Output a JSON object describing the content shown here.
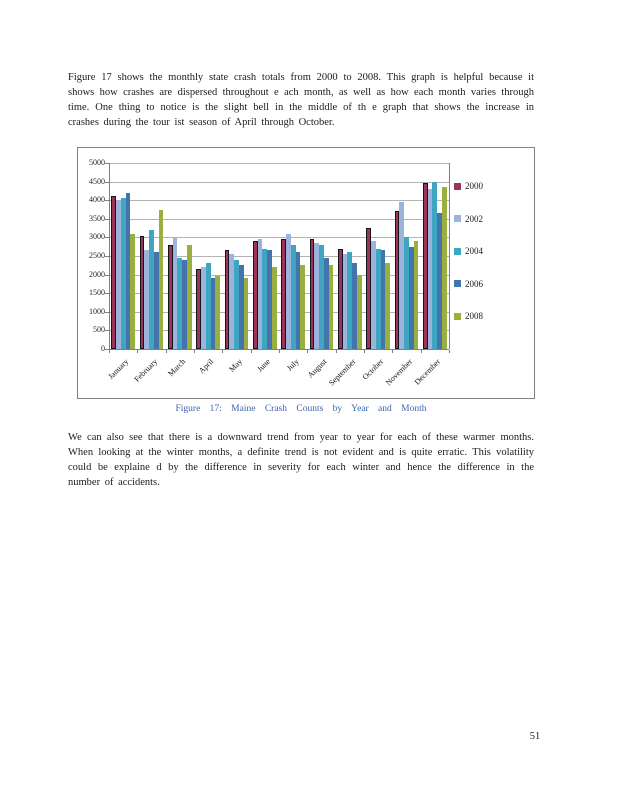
{
  "page": {
    "number": "51"
  },
  "paragraphs": {
    "top": "Figure 17 shows the monthly state crash totals from 2000 to 2008. This graph is helpful because it shows how crashes are dispersed throughout e ach month, as well as how each month varies through time. One thing to notice is the slight bell in the middle of th e graph that shows the increase in crashes during the tour ist season of April through October.",
    "bottom": "We can also see that there is a downward trend from year to year for each of these warmer months. When looking at the winter months, a definite trend is not evident and is quite erratic. This volatility could be explaine d by the difference in severity for each winter and hence the difference in the number of accidents."
  },
  "caption": "Figure 17: Maine Crash Counts by Year and Month",
  "chart_data": {
    "type": "bar",
    "title": "",
    "xlabel": "",
    "ylabel": "",
    "ylim": [
      0,
      5000
    ],
    "y_tick_step": 500,
    "y_ticks": [
      0,
      500,
      1000,
      1500,
      2000,
      2500,
      3000,
      3500,
      4000,
      4500,
      5000
    ],
    "grid": true,
    "legend_position": "right",
    "categories": [
      "January",
      "February",
      "March",
      "April",
      "May",
      "June",
      "July",
      "August",
      "September",
      "October",
      "November",
      "December"
    ],
    "series": [
      {
        "name": "2000",
        "color": "#9c3359",
        "outline": "#14141e",
        "values": [
          4100,
          3050,
          2800,
          2150,
          2650,
          2900,
          2950,
          2950,
          2700,
          3250,
          3700,
          4450
        ]
      },
      {
        "name": "2002",
        "color": "#9cb3dc",
        "outline": "#8aa3cc",
        "values": [
          4000,
          2650,
          3000,
          2200,
          2550,
          2950,
          3100,
          2850,
          2550,
          2900,
          3950,
          4300
        ]
      },
      {
        "name": "2004",
        "color": "#3fa6c2",
        "outline": "#3595b0",
        "values": [
          4050,
          3200,
          2450,
          2300,
          2400,
          2700,
          2800,
          2800,
          2600,
          2700,
          3000,
          4500
        ]
      },
      {
        "name": "2006",
        "color": "#4374ac",
        "outline": "#38659a",
        "values": [
          4200,
          2600,
          2400,
          1900,
          2250,
          2650,
          2600,
          2450,
          2300,
          2650,
          2750,
          3650
        ]
      },
      {
        "name": "2008",
        "color": "#99b041",
        "outline": "#87a035",
        "values": [
          3100,
          3750,
          2800,
          1950,
          1900,
          2200,
          2250,
          2250,
          2000,
          2300,
          2900,
          4350
        ]
      }
    ]
  },
  "colors": {
    "caption_text": "#3e64ae",
    "gridline": "#b3b3b3",
    "axis": "#808080",
    "chart_border": "#808080"
  }
}
